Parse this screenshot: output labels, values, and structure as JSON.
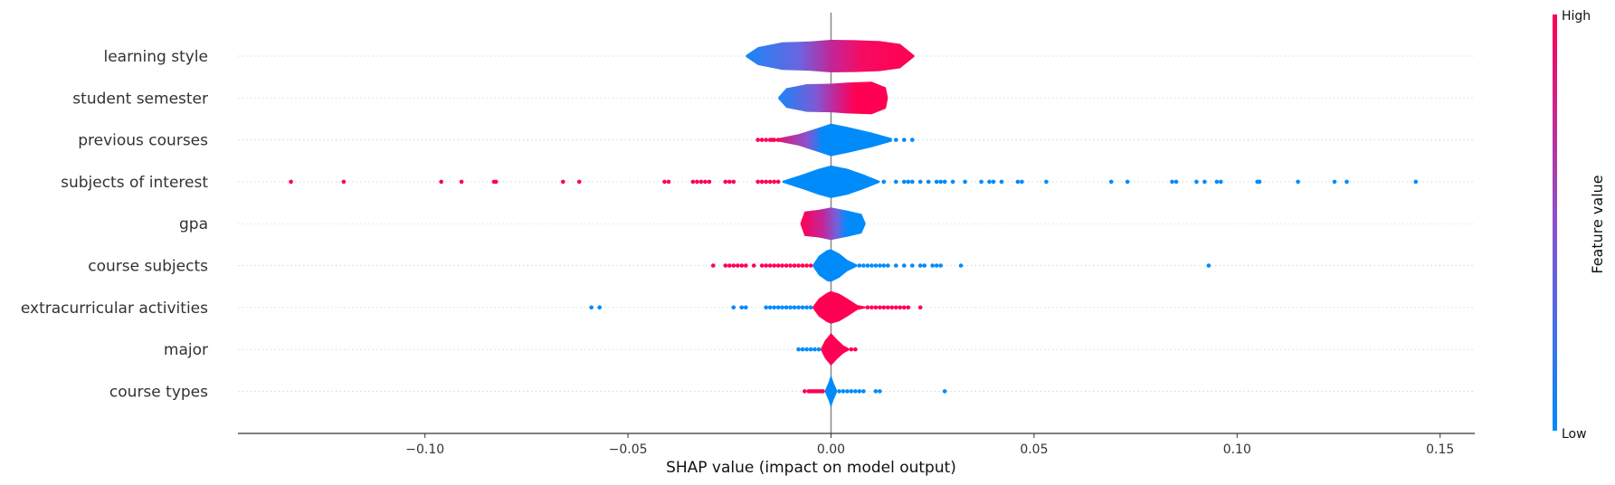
{
  "chart_data": {
    "type": "violin-summary",
    "xlabel": "SHAP value (impact on model output)",
    "xlim": [
      -0.146,
      0.158
    ],
    "xticks": [
      -0.1,
      -0.05,
      0.0,
      0.05,
      0.1,
      0.15
    ],
    "xtick_labels": [
      "−0.10",
      "−0.05",
      "0.00",
      "0.05",
      "0.10",
      "0.15"
    ],
    "colorbar": {
      "title": "Feature value",
      "high_label": "High",
      "low_label": "Low",
      "low_color": "#008bfb",
      "high_color": "#ff0052"
    },
    "features": [
      {
        "name": "learning style",
        "violin": [
          [
            -0.021,
            0.05
          ],
          [
            -0.018,
            0.55
          ],
          [
            -0.012,
            0.85
          ],
          [
            -0.005,
            0.9
          ],
          [
            0.0,
            1.0
          ],
          [
            0.006,
            0.98
          ],
          [
            0.012,
            0.92
          ],
          [
            0.017,
            0.75
          ],
          [
            0.0205,
            0.05
          ]
        ],
        "colors": [
          [
            -0.021,
            "#1a85f7"
          ],
          [
            -0.008,
            "#6966e0"
          ],
          [
            0.0,
            "#c2269a"
          ],
          [
            0.008,
            "#f70a60"
          ],
          [
            0.0205,
            "#ff0052"
          ]
        ],
        "points": []
      },
      {
        "name": "student semester",
        "violin": [
          [
            -0.013,
            0.05
          ],
          [
            -0.011,
            0.6
          ],
          [
            -0.006,
            0.85
          ],
          [
            0.0,
            0.88
          ],
          [
            0.004,
            0.95
          ],
          [
            0.01,
            1.0
          ],
          [
            0.0135,
            0.65
          ],
          [
            0.014,
            0.05
          ]
        ],
        "colors": [
          [
            -0.013,
            "#1a85f7"
          ],
          [
            -0.004,
            "#7a5cd6"
          ],
          [
            0.002,
            "#d11d8c"
          ],
          [
            0.006,
            "#ff0052"
          ],
          [
            0.014,
            "#ff0052"
          ]
        ],
        "points": []
      },
      {
        "name": "previous courses",
        "violin": [
          [
            -0.014,
            0.05
          ],
          [
            -0.008,
            0.35
          ],
          [
            -0.003,
            0.75
          ],
          [
            0.0,
            1.0
          ],
          [
            0.004,
            0.8
          ],
          [
            0.01,
            0.45
          ],
          [
            0.015,
            0.1
          ]
        ],
        "colors": [
          [
            -0.014,
            "#e3126f"
          ],
          [
            -0.006,
            "#8b52cf"
          ],
          [
            -0.002,
            "#008bfb"
          ],
          [
            0.015,
            "#008bfb"
          ]
        ],
        "points_low": [
          0.016,
          0.018,
          0.02
        ],
        "points_high": [
          -0.018,
          -0.017,
          -0.016,
          -0.015,
          -0.0145,
          -0.014,
          -0.013
        ]
      },
      {
        "name": "subjects of interest",
        "violin": [
          [
            -0.012,
            0.05
          ],
          [
            -0.007,
            0.45
          ],
          [
            -0.003,
            0.8
          ],
          [
            0.0,
            1.0
          ],
          [
            0.004,
            0.8
          ],
          [
            0.008,
            0.45
          ],
          [
            0.012,
            0.05
          ]
        ],
        "colors": [
          [
            -0.012,
            "#008bfb"
          ],
          [
            0.012,
            "#008bfb"
          ]
        ],
        "points_low": [
          0.013,
          0.016,
          0.018,
          0.019,
          0.02,
          0.022,
          0.024,
          0.026,
          0.027,
          0.028,
          0.03,
          0.033,
          0.037,
          0.039,
          0.04,
          0.042,
          0.046,
          0.047,
          0.053,
          0.069,
          0.073,
          0.084,
          0.085,
          0.09,
          0.092,
          0.095,
          0.096,
          0.105,
          0.1055,
          0.115,
          0.124,
          0.127,
          0.144
        ],
        "points_high": [
          -0.133,
          -0.12,
          -0.096,
          -0.091,
          -0.083,
          -0.0825,
          -0.066,
          -0.062,
          -0.041,
          -0.04,
          -0.034,
          -0.033,
          -0.032,
          -0.031,
          -0.03,
          -0.026,
          -0.025,
          -0.024,
          -0.018,
          -0.017,
          -0.016,
          -0.015,
          -0.014,
          -0.013
        ]
      },
      {
        "name": "gpa",
        "violin": [
          [
            -0.0075,
            0.05
          ],
          [
            -0.0065,
            0.75
          ],
          [
            -0.003,
            0.85
          ],
          [
            0.0,
            1.0
          ],
          [
            0.004,
            0.8
          ],
          [
            0.0075,
            0.6
          ],
          [
            0.0085,
            0.05
          ]
        ],
        "colors": [
          [
            -0.0075,
            "#ff0052"
          ],
          [
            -0.002,
            "#c2269a"
          ],
          [
            0.0015,
            "#6c64df"
          ],
          [
            0.004,
            "#008bfb"
          ],
          [
            0.0085,
            "#008bfb"
          ]
        ],
        "points": []
      },
      {
        "name": "course subjects",
        "violin": [
          [
            -0.0045,
            0.05
          ],
          [
            -0.003,
            0.6
          ],
          [
            -0.001,
            0.95
          ],
          [
            0.0,
            1.0
          ],
          [
            0.002,
            0.75
          ],
          [
            0.004,
            0.35
          ],
          [
            0.0065,
            0.05
          ]
        ],
        "colors": [
          [
            -0.0045,
            "#008bfb"
          ],
          [
            0.0065,
            "#008bfb"
          ]
        ],
        "points_low": [
          0.007,
          0.008,
          0.009,
          0.01,
          0.011,
          0.012,
          0.013,
          0.014,
          0.016,
          0.018,
          0.02,
          0.022,
          0.023,
          0.025,
          0.026,
          0.027,
          0.032,
          0.093
        ],
        "points_high": [
          -0.029,
          -0.026,
          -0.025,
          -0.024,
          -0.023,
          -0.022,
          -0.021,
          -0.019,
          -0.017,
          -0.016,
          -0.015,
          -0.014,
          -0.013,
          -0.012,
          -0.011,
          -0.01,
          -0.009,
          -0.008,
          -0.007,
          -0.006,
          -0.005
        ]
      },
      {
        "name": "extracurricular activities",
        "violin": [
          [
            -0.0045,
            0.05
          ],
          [
            -0.003,
            0.55
          ],
          [
            -0.001,
            0.9
          ],
          [
            0.0,
            1.0
          ],
          [
            0.002,
            0.85
          ],
          [
            0.004,
            0.55
          ],
          [
            0.0065,
            0.15
          ],
          [
            0.0085,
            0.05
          ]
        ],
        "colors": [
          [
            -0.0045,
            "#ff0052"
          ],
          [
            0.0085,
            "#ff0052"
          ]
        ],
        "points_low": [
          -0.059,
          -0.057,
          -0.024,
          -0.022,
          -0.021,
          -0.016,
          -0.015,
          -0.014,
          -0.013,
          -0.012,
          -0.011,
          -0.01,
          -0.009,
          -0.008,
          -0.007,
          -0.006,
          -0.005
        ],
        "points_high": [
          0.009,
          0.01,
          0.011,
          0.012,
          0.013,
          0.014,
          0.015,
          0.016,
          0.017,
          0.018,
          0.019,
          0.022
        ]
      },
      {
        "name": "major",
        "violin": [
          [
            -0.0025,
            0.05
          ],
          [
            -0.0015,
            0.55
          ],
          [
            0.0,
            1.0
          ],
          [
            0.0015,
            0.6
          ],
          [
            0.003,
            0.25
          ],
          [
            0.0045,
            0.05
          ]
        ],
        "colors": [
          [
            -0.0025,
            "#ff0052"
          ],
          [
            0.0045,
            "#ff0052"
          ]
        ],
        "points_low": [
          -0.008,
          -0.007,
          -0.006,
          -0.005,
          -0.004,
          -0.003
        ],
        "points_high": [
          0.005,
          0.006
        ]
      },
      {
        "name": "course types",
        "violin": [
          [
            -0.0015,
            0.05
          ],
          [
            -0.0007,
            0.5
          ],
          [
            0.0,
            1.0
          ],
          [
            0.0007,
            0.5
          ],
          [
            0.0015,
            0.05
          ]
        ],
        "colors": [
          [
            -0.0015,
            "#008bfb"
          ],
          [
            0.0015,
            "#008bfb"
          ]
        ],
        "points_low": [
          0.002,
          0.003,
          0.004,
          0.005,
          0.006,
          0.007,
          0.008,
          0.011,
          0.012,
          0.028
        ],
        "points_high": [
          -0.0065,
          -0.0055,
          -0.005,
          -0.0045,
          -0.004,
          -0.0035,
          -0.003,
          -0.0025,
          -0.002
        ]
      }
    ]
  }
}
